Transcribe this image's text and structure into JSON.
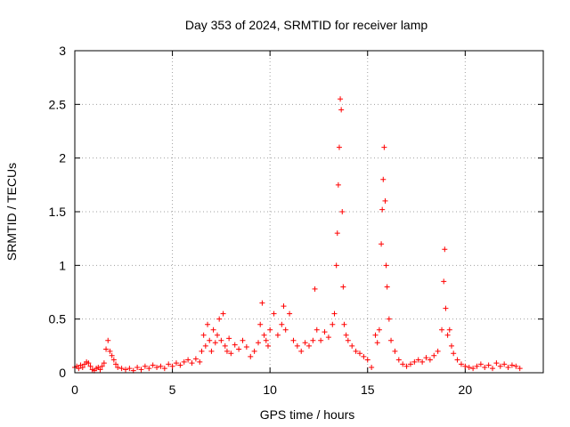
{
  "chart_data": {
    "type": "scatter",
    "title": "Day 353 of 2024, SRMTID for receiver lamp",
    "xlabel": "GPS time / hours",
    "ylabel": "SRMTID / TECUs",
    "xlim": [
      0,
      24
    ],
    "ylim": [
      0,
      3
    ],
    "x_ticks": [
      0,
      5,
      10,
      15,
      20
    ],
    "x_tick_labels": [
      "0",
      "5",
      "10",
      "15",
      "20"
    ],
    "y_ticks": [
      0,
      0.5,
      1,
      1.5,
      2,
      2.5,
      3
    ],
    "y_tick_labels": [
      "0",
      "0.5",
      "1",
      "1.5",
      "2",
      "2.5",
      "3"
    ],
    "grid": true,
    "marker": "+",
    "series": [
      {
        "name": "SRMTID",
        "color": "#ff0000",
        "points": [
          [
            0.0,
            0.05
          ],
          [
            0.1,
            0.06
          ],
          [
            0.2,
            0.04
          ],
          [
            0.3,
            0.07
          ],
          [
            0.4,
            0.05
          ],
          [
            0.5,
            0.08
          ],
          [
            0.6,
            0.1
          ],
          [
            0.7,
            0.09
          ],
          [
            0.8,
            0.06
          ],
          [
            0.9,
            0.03
          ],
          [
            1.0,
            0.02
          ],
          [
            1.1,
            0.04
          ],
          [
            1.2,
            0.05
          ],
          [
            1.3,
            0.03
          ],
          [
            1.4,
            0.06
          ],
          [
            1.5,
            0.09
          ],
          [
            1.6,
            0.22
          ],
          [
            1.7,
            0.3
          ],
          [
            1.8,
            0.2
          ],
          [
            1.9,
            0.16
          ],
          [
            2.0,
            0.12
          ],
          [
            2.1,
            0.08
          ],
          [
            2.2,
            0.05
          ],
          [
            2.4,
            0.04
          ],
          [
            2.6,
            0.03
          ],
          [
            2.8,
            0.04
          ],
          [
            3.0,
            0.02
          ],
          [
            3.2,
            0.05
          ],
          [
            3.4,
            0.03
          ],
          [
            3.6,
            0.06
          ],
          [
            3.8,
            0.04
          ],
          [
            4.0,
            0.07
          ],
          [
            4.2,
            0.05
          ],
          [
            4.4,
            0.06
          ],
          [
            4.6,
            0.04
          ],
          [
            4.8,
            0.08
          ],
          [
            5.0,
            0.06
          ],
          [
            5.2,
            0.09
          ],
          [
            5.4,
            0.07
          ],
          [
            5.6,
            0.1
          ],
          [
            5.8,
            0.12
          ],
          [
            6.0,
            0.09
          ],
          [
            6.2,
            0.13
          ],
          [
            6.4,
            0.1
          ],
          [
            6.5,
            0.2
          ],
          [
            6.6,
            0.35
          ],
          [
            6.7,
            0.25
          ],
          [
            6.8,
            0.45
          ],
          [
            6.9,
            0.3
          ],
          [
            7.0,
            0.2
          ],
          [
            7.1,
            0.4
          ],
          [
            7.2,
            0.28
          ],
          [
            7.3,
            0.35
          ],
          [
            7.4,
            0.5
          ],
          [
            7.5,
            0.3
          ],
          [
            7.6,
            0.55
          ],
          [
            7.7,
            0.25
          ],
          [
            7.8,
            0.2
          ],
          [
            7.9,
            0.32
          ],
          [
            8.0,
            0.18
          ],
          [
            8.2,
            0.26
          ],
          [
            8.4,
            0.22
          ],
          [
            8.6,
            0.3
          ],
          [
            8.8,
            0.24
          ],
          [
            9.0,
            0.15
          ],
          [
            9.2,
            0.2
          ],
          [
            9.4,
            0.28
          ],
          [
            9.5,
            0.45
          ],
          [
            9.6,
            0.65
          ],
          [
            9.7,
            0.35
          ],
          [
            9.8,
            0.3
          ],
          [
            9.9,
            0.25
          ],
          [
            10.0,
            0.4
          ],
          [
            10.2,
            0.55
          ],
          [
            10.4,
            0.35
          ],
          [
            10.6,
            0.45
          ],
          [
            10.7,
            0.62
          ],
          [
            10.8,
            0.4
          ],
          [
            11.0,
            0.55
          ],
          [
            11.2,
            0.3
          ],
          [
            11.4,
            0.25
          ],
          [
            11.6,
            0.2
          ],
          [
            11.8,
            0.28
          ],
          [
            12.0,
            0.25
          ],
          [
            12.2,
            0.3
          ],
          [
            12.3,
            0.78
          ],
          [
            12.4,
            0.4
          ],
          [
            12.6,
            0.3
          ],
          [
            12.8,
            0.38
          ],
          [
            13.0,
            0.33
          ],
          [
            13.2,
            0.45
          ],
          [
            13.3,
            0.55
          ],
          [
            13.4,
            1.0
          ],
          [
            13.45,
            1.3
          ],
          [
            13.5,
            1.75
          ],
          [
            13.55,
            2.1
          ],
          [
            13.6,
            2.55
          ],
          [
            13.65,
            2.45
          ],
          [
            13.7,
            1.5
          ],
          [
            13.75,
            0.8
          ],
          [
            13.8,
            0.45
          ],
          [
            13.9,
            0.35
          ],
          [
            14.0,
            0.3
          ],
          [
            14.2,
            0.25
          ],
          [
            14.4,
            0.2
          ],
          [
            14.6,
            0.18
          ],
          [
            14.8,
            0.15
          ],
          [
            15.0,
            0.12
          ],
          [
            15.2,
            0.05
          ],
          [
            15.4,
            0.35
          ],
          [
            15.5,
            0.28
          ],
          [
            15.6,
            0.4
          ],
          [
            15.7,
            1.2
          ],
          [
            15.75,
            1.52
          ],
          [
            15.8,
            1.8
          ],
          [
            15.85,
            2.1
          ],
          [
            15.9,
            1.6
          ],
          [
            15.95,
            1.0
          ],
          [
            16.0,
            0.8
          ],
          [
            16.1,
            0.5
          ],
          [
            16.2,
            0.3
          ],
          [
            16.4,
            0.2
          ],
          [
            16.6,
            0.12
          ],
          [
            16.8,
            0.08
          ],
          [
            17.0,
            0.06
          ],
          [
            17.2,
            0.08
          ],
          [
            17.4,
            0.1
          ],
          [
            17.6,
            0.12
          ],
          [
            17.8,
            0.1
          ],
          [
            18.0,
            0.14
          ],
          [
            18.2,
            0.12
          ],
          [
            18.4,
            0.16
          ],
          [
            18.6,
            0.2
          ],
          [
            18.8,
            0.4
          ],
          [
            18.9,
            0.85
          ],
          [
            18.95,
            1.15
          ],
          [
            19.0,
            0.6
          ],
          [
            19.1,
            0.35
          ],
          [
            19.2,
            0.4
          ],
          [
            19.3,
            0.25
          ],
          [
            19.4,
            0.18
          ],
          [
            19.6,
            0.12
          ],
          [
            19.8,
            0.08
          ],
          [
            20.0,
            0.06
          ],
          [
            20.2,
            0.05
          ],
          [
            20.4,
            0.04
          ],
          [
            20.6,
            0.06
          ],
          [
            20.8,
            0.08
          ],
          [
            21.0,
            0.05
          ],
          [
            21.2,
            0.07
          ],
          [
            21.4,
            0.04
          ],
          [
            21.6,
            0.09
          ],
          [
            21.8,
            0.06
          ],
          [
            22.0,
            0.08
          ],
          [
            22.2,
            0.05
          ],
          [
            22.4,
            0.07
          ],
          [
            22.6,
            0.06
          ],
          [
            22.8,
            0.04
          ]
        ]
      }
    ]
  }
}
